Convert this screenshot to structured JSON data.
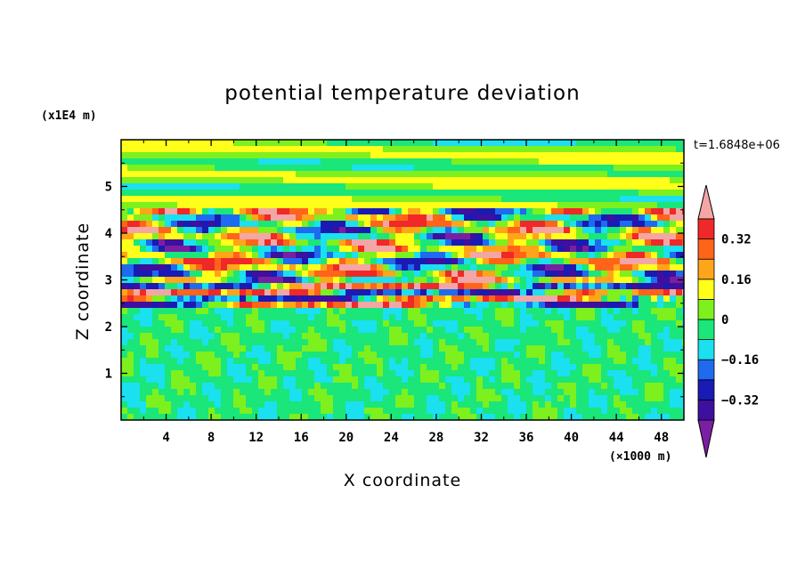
{
  "chart_data": {
    "type": "heatmap",
    "title": "potential temperature deviation",
    "xlabel": "X coordinate",
    "ylabel": "Z coordinate",
    "x_unit": "(×1000 m)",
    "y_unit": "(x1E4 m)",
    "time_label": "t=1.6848e+06",
    "xlim": [
      0,
      50
    ],
    "ylim": [
      0,
      6
    ],
    "x_ticks": [
      "4",
      "8",
      "12",
      "16",
      "20",
      "24",
      "28",
      "32",
      "36",
      "40",
      "44",
      "48"
    ],
    "y_ticks": [
      "1",
      "2",
      "3",
      "4",
      "5"
    ],
    "colorbar": {
      "labels": [
        "0.32",
        "0.16",
        "0",
        "-0.16",
        "-0.32"
      ],
      "labels_display": [
        "0.32",
        "0.16",
        "0",
        "−0.16",
        "−0.32"
      ],
      "levels": [
        -0.4,
        -0.32,
        -0.24,
        -0.16,
        -0.08,
        0,
        0.08,
        0.16,
        0.24,
        0.32,
        0.4
      ],
      "colors": [
        "#7A1FA2",
        "#3F0FA0",
        "#1A1AB4",
        "#1E6BF0",
        "#1AE0F0",
        "#1AE67A",
        "#7DF01E",
        "#FFFF1A",
        "#FFA51A",
        "#FF641A",
        "#F02828",
        "#F4A6A6"
      ]
    },
    "bands": [
      {
        "z": [
          0,
          2.4
        ],
        "description": "fine-scale noise near zero (green / teal)"
      },
      {
        "z": [
          2.4,
          3.0
        ],
        "description": "thin intense alternating layers"
      },
      {
        "z": [
          3.0,
          4.6
        ],
        "description": "large amplitude wave structures"
      },
      {
        "z": [
          4.6,
          6.0
        ],
        "description": "weak stratified layers"
      }
    ]
  }
}
